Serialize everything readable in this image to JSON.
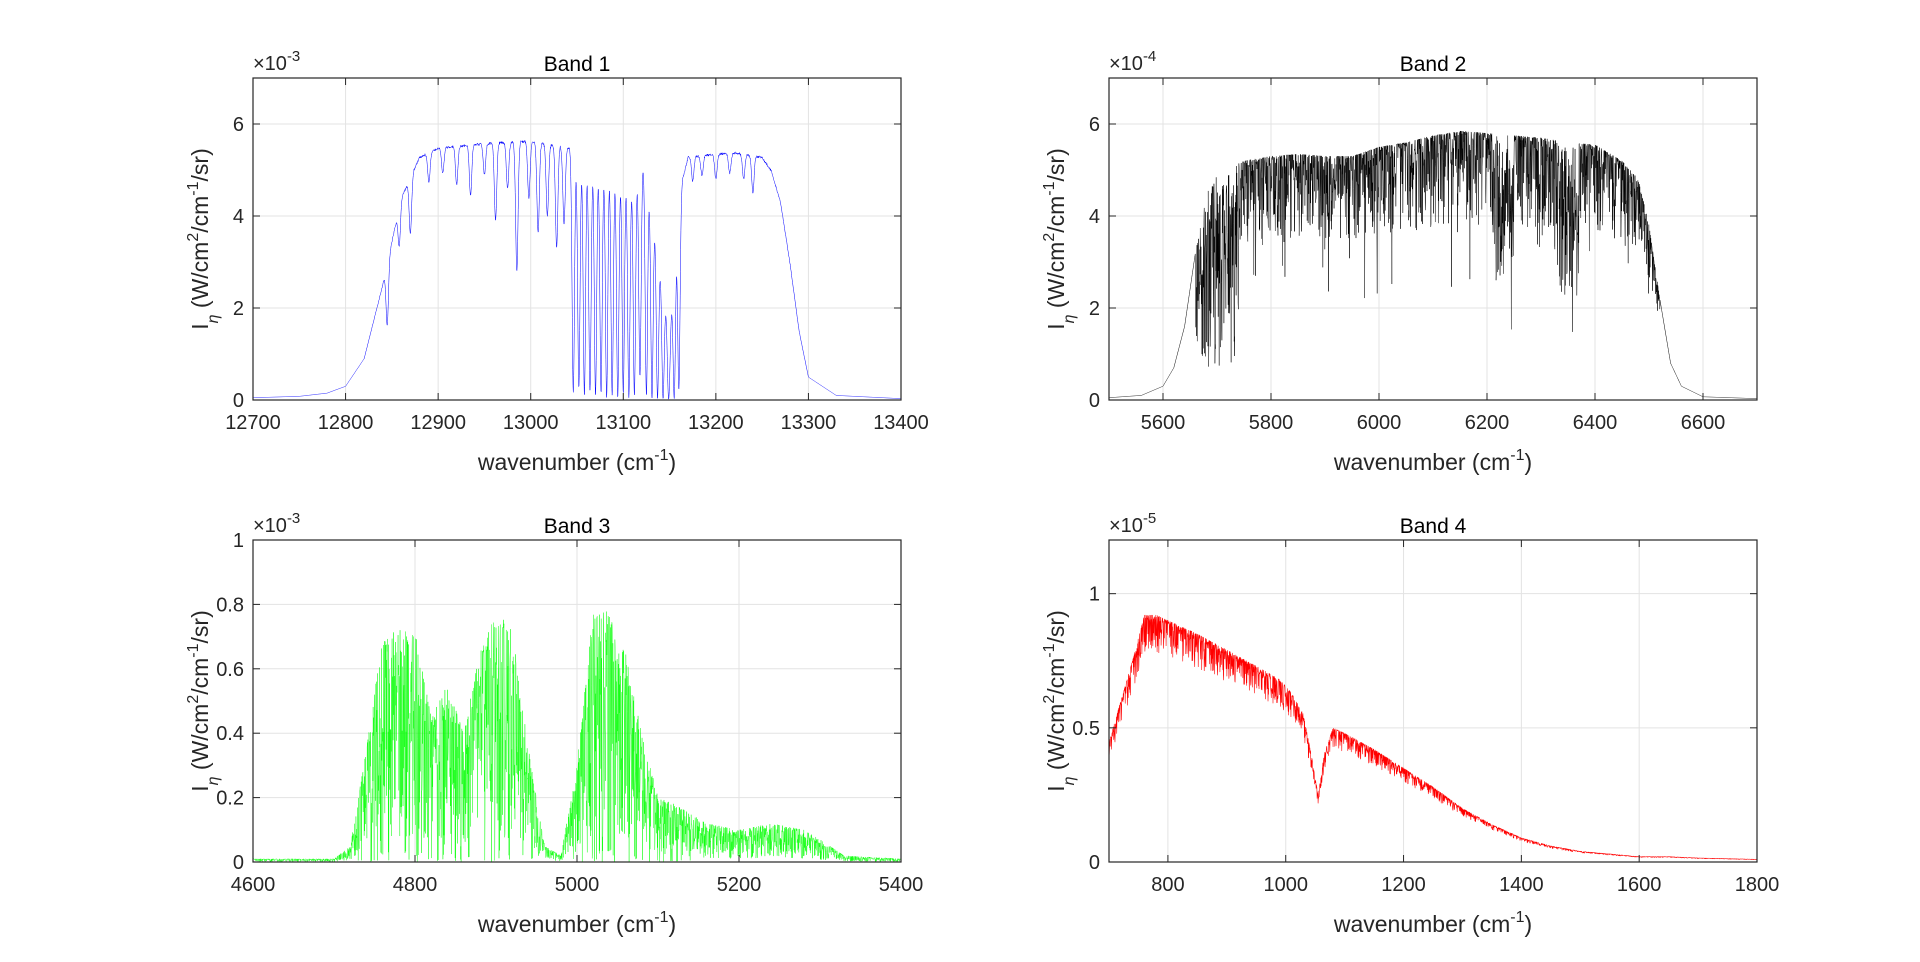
{
  "chart_data": [
    {
      "type": "line",
      "title": "Band 1",
      "xlabel": "wavenumber (cm-1)",
      "ylabel": "Iη (W/cm2/cm-1/sr)",
      "y_exponent": "×10-3",
      "xlim": [
        12700,
        13400
      ],
      "ylim": [
        0,
        7
      ],
      "xticks": [
        12700,
        12800,
        12900,
        13000,
        13100,
        13200,
        13300,
        13400
      ],
      "yticks": [
        0,
        2,
        4,
        6
      ],
      "grid": true,
      "color": "#0000ff",
      "series": [
        {
          "x": [
            12700,
            12750,
            12780,
            12800,
            12820,
            12840,
            12860,
            12880,
            12900,
            12950,
            13000,
            13040,
            13080,
            13110,
            13120,
            13130,
            13140,
            13150,
            13160,
            13170,
            13190,
            13220,
            13250,
            13260,
            13270,
            13280,
            13290,
            13300,
            13330,
            13400
          ],
          "values": [
            0.05,
            0.08,
            0.15,
            0.3,
            0.9,
            2.5,
            4.4,
            5.3,
            5.5,
            5.6,
            5.65,
            5.5,
            5.3,
            5.0,
            5.3,
            4.6,
            3.0,
            1.5,
            4.5,
            5.3,
            5.35,
            5.4,
            5.3,
            5.0,
            4.3,
            3.0,
            1.5,
            0.5,
            0.1,
            0.03
          ]
        }
      ],
      "absorption": [
        {
          "x": 12845,
          "depth": 0.45
        },
        {
          "x": 12858,
          "depth": 0.2
        },
        {
          "x": 12870,
          "depth": 0.25
        },
        {
          "x": 12890,
          "depth": 0.12
        },
        {
          "x": 12905,
          "depth": 0.1
        },
        {
          "x": 12920,
          "depth": 0.15
        },
        {
          "x": 12935,
          "depth": 0.2
        },
        {
          "x": 12950,
          "depth": 0.12
        },
        {
          "x": 12962,
          "depth": 0.3
        },
        {
          "x": 12975,
          "depth": 0.18
        },
        {
          "x": 12985,
          "depth": 0.5
        },
        {
          "x": 12998,
          "depth": 0.22
        },
        {
          "x": 13008,
          "depth": 0.35
        },
        {
          "x": 13018,
          "depth": 0.28
        },
        {
          "x": 13028,
          "depth": 0.4
        },
        {
          "x": 13036,
          "depth": 0.3
        },
        {
          "x": 13046,
          "depth": 0.97
        },
        {
          "x": 13052,
          "depth": 0.95
        },
        {
          "x": 13058,
          "depth": 0.98
        },
        {
          "x": 13064,
          "depth": 0.96
        },
        {
          "x": 13070,
          "depth": 0.98
        },
        {
          "x": 13076,
          "depth": 0.97
        },
        {
          "x": 13082,
          "depth": 0.99
        },
        {
          "x": 13088,
          "depth": 0.98
        },
        {
          "x": 13094,
          "depth": 0.99
        },
        {
          "x": 13100,
          "depth": 0.97
        },
        {
          "x": 13106,
          "depth": 0.99
        },
        {
          "x": 13112,
          "depth": 0.98
        },
        {
          "x": 13118,
          "depth": 0.9
        },
        {
          "x": 13125,
          "depth": 0.98
        },
        {
          "x": 13131,
          "depth": 0.99
        },
        {
          "x": 13137,
          "depth": 0.99
        },
        {
          "x": 13143,
          "depth": 0.99
        },
        {
          "x": 13149,
          "depth": 0.99
        },
        {
          "x": 13155,
          "depth": 0.99
        },
        {
          "x": 13160,
          "depth": 0.95
        },
        {
          "x": 13175,
          "depth": 0.1
        },
        {
          "x": 13185,
          "depth": 0.08
        },
        {
          "x": 13200,
          "depth": 0.1
        },
        {
          "x": 13215,
          "depth": 0.08
        },
        {
          "x": 13230,
          "depth": 0.1
        },
        {
          "x": 13240,
          "depth": 0.15
        }
      ]
    },
    {
      "type": "line",
      "title": "Band 2",
      "xlabel": "wavenumber (cm-1)",
      "ylabel": "Iη (W/cm2/cm-1/sr)",
      "y_exponent": "×10-4",
      "xlim": [
        5500,
        6700
      ],
      "ylim": [
        0,
        7
      ],
      "xticks": [
        5600,
        5800,
        6000,
        6200,
        6400,
        6600
      ],
      "yticks": [
        0,
        2,
        4,
        6
      ],
      "grid": true,
      "color": "#000000",
      "series": [
        {
          "x": [
            5500,
            5560,
            5600,
            5620,
            5640,
            5660,
            5680,
            5700,
            5750,
            5800,
            5850,
            5900,
            5950,
            6000,
            6050,
            6100,
            6150,
            6200,
            6250,
            6300,
            6350,
            6400,
            6450,
            6480,
            6500,
            6520,
            6540,
            6560,
            6600,
            6700
          ],
          "values": [
            0.05,
            0.1,
            0.3,
            0.7,
            1.6,
            3.2,
            4.5,
            4.9,
            5.2,
            5.3,
            5.35,
            5.3,
            5.3,
            5.5,
            5.6,
            5.75,
            5.85,
            5.8,
            5.75,
            5.7,
            5.6,
            5.55,
            5.2,
            4.8,
            3.8,
            2.2,
            0.8,
            0.3,
            0.07,
            0.03
          ]
        }
      ],
      "absorption_band": {
        "x_start": 5660,
        "x_end": 6520,
        "spacing": 3.2,
        "depth_typical": 0.35,
        "strong_regions": [
          [
            5660,
            5740,
            0.85
          ],
          [
            6210,
            6250,
            0.55
          ],
          [
            6330,
            6370,
            0.6
          ]
        ]
      }
    },
    {
      "type": "line",
      "title": "Band 3",
      "xlabel": "wavenumber (cm-1)",
      "ylabel": "Iη (W/cm2/cm-1/sr)",
      "y_exponent": "×10-3",
      "xlim": [
        4600,
        5400
      ],
      "ylim": [
        0,
        1
      ],
      "xticks": [
        4600,
        4800,
        5000,
        5200,
        5400
      ],
      "yticks": [
        0,
        0.2,
        0.4,
        0.6,
        0.8,
        1
      ],
      "grid": true,
      "color": "#00ff00",
      "series": [
        {
          "x": [
            4600,
            4700,
            4720,
            4740,
            4760,
            4780,
            4800,
            4820,
            4840,
            4860,
            4880,
            4900,
            4920,
            4940,
            4960,
            4980,
            5000,
            5020,
            5040,
            5060,
            5080,
            5100,
            5120,
            5160,
            5200,
            5240,
            5280,
            5300,
            5330,
            5400
          ],
          "values": [
            0.01,
            0.01,
            0.05,
            0.35,
            0.7,
            0.72,
            0.72,
            0.45,
            0.55,
            0.4,
            0.65,
            0.78,
            0.72,
            0.35,
            0.05,
            0.02,
            0.3,
            0.78,
            0.78,
            0.65,
            0.4,
            0.2,
            0.18,
            0.12,
            0.1,
            0.12,
            0.1,
            0.07,
            0.02,
            0.01
          ]
        }
      ],
      "noise_amplitude": 0.9
    },
    {
      "type": "line",
      "title": "Band 4",
      "xlabel": "wavenumber (cm-1)",
      "ylabel": "Iη (W/cm2/cm-1/sr)",
      "y_exponent": "×10-5",
      "xlim": [
        700,
        1800
      ],
      "ylim": [
        0,
        1.2
      ],
      "xticks": [
        800,
        1000,
        1200,
        1400,
        1600,
        1800
      ],
      "yticks": [
        0,
        0.5,
        1
      ],
      "grid": true,
      "color": "#ff0000",
      "series": [
        {
          "x": [
            700,
            720,
            740,
            760,
            780,
            800,
            850,
            900,
            950,
            990,
            1010,
            1030,
            1045,
            1055,
            1065,
            1080,
            1100,
            1150,
            1200,
            1250,
            1300,
            1350,
            1400,
            1450,
            1500,
            1550,
            1600,
            1650,
            1700,
            1800
          ],
          "values": [
            0.45,
            0.6,
            0.75,
            0.92,
            0.92,
            0.9,
            0.85,
            0.79,
            0.73,
            0.68,
            0.63,
            0.55,
            0.38,
            0.25,
            0.4,
            0.5,
            0.48,
            0.42,
            0.35,
            0.28,
            0.2,
            0.14,
            0.09,
            0.06,
            0.04,
            0.03,
            0.02,
            0.02,
            0.015,
            0.01
          ]
        }
      ],
      "noise_amplitude": 0.15
    }
  ]
}
